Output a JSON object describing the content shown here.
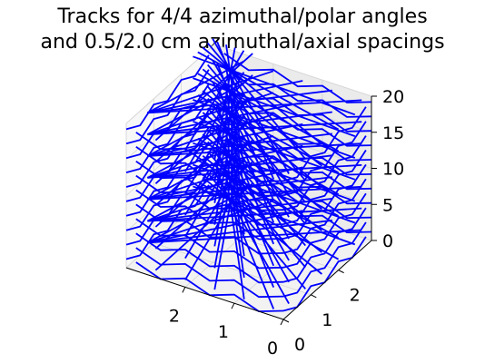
{
  "chart_data": {
    "type": "3d-line",
    "title": [
      "Tracks for 4/4 azimuthal/polar angles",
      "and 0.5/2.0 cm azimuthal/axial spacings"
    ],
    "x_ticks": [
      "0",
      "1",
      "2"
    ],
    "y_ticks": [
      "0",
      "1",
      "2"
    ],
    "z_ticks": [
      "0",
      "5",
      "10",
      "15",
      "20"
    ],
    "xlim": [
      0,
      3.2
    ],
    "ylim": [
      0,
      3.2
    ],
    "zlim": [
      0,
      20
    ],
    "axial_spacing_cm": 2.0,
    "azimuthal_spacing_cm": 0.5,
    "num_azimuthal_angles": 4,
    "num_polar_angles": 4,
    "grid": true,
    "track_color": "#0000ff"
  }
}
